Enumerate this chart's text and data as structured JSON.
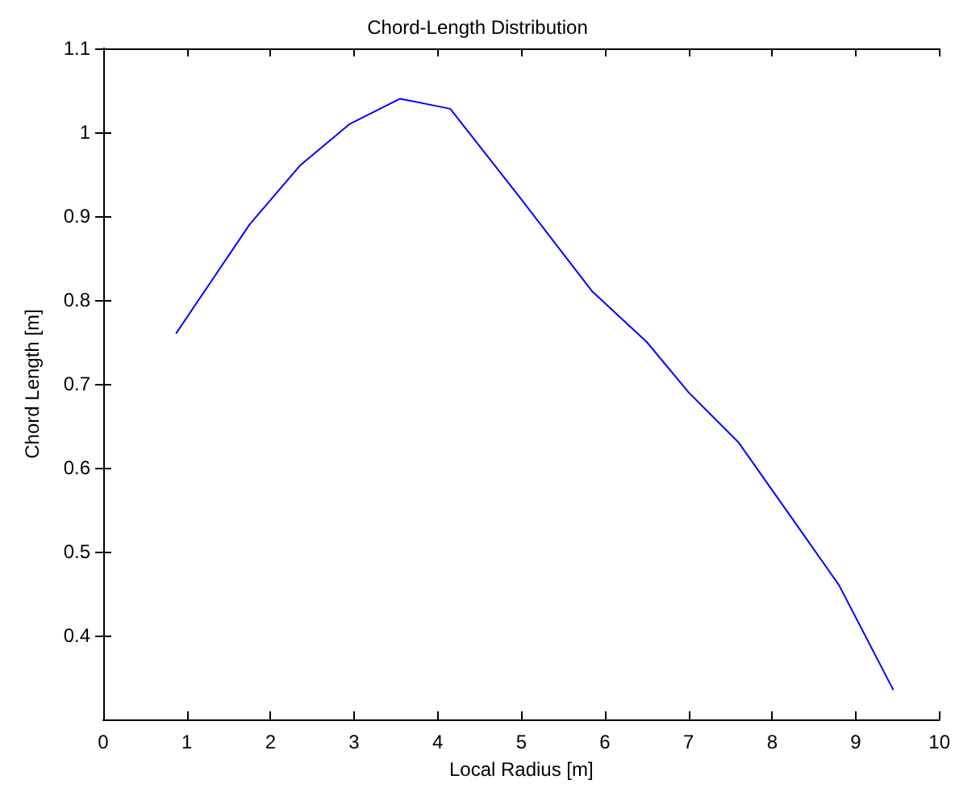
{
  "chart_data": {
    "type": "line",
    "title": "Chord-Length Distribution",
    "xlabel": "Local Radius [m]",
    "ylabel": "Chord Length [m]",
    "x": [
      0.87,
      1.75,
      2.35,
      2.95,
      3.55,
      4.15,
      5.0,
      5.85,
      6.5,
      7.0,
      7.6,
      8.2,
      8.8,
      9.45
    ],
    "series": [
      {
        "color": "#0000ff",
        "values": [
          0.76,
          0.89,
          0.96,
          1.01,
          1.04,
          1.028,
          0.92,
          0.81,
          0.75,
          0.69,
          0.63,
          0.545,
          0.46,
          0.335
        ]
      }
    ],
    "xlim": [
      0,
      10
    ],
    "xticks": [
      0,
      1,
      2,
      3,
      4,
      5,
      6,
      7,
      8,
      9,
      10
    ],
    "ylim": [
      0.3,
      1.1
    ],
    "yticks": [
      0.4,
      0.5,
      0.6,
      0.7,
      0.8,
      0.9,
      1,
      1.1
    ],
    "grid": false,
    "marker": "none",
    "line_style": "solid"
  }
}
